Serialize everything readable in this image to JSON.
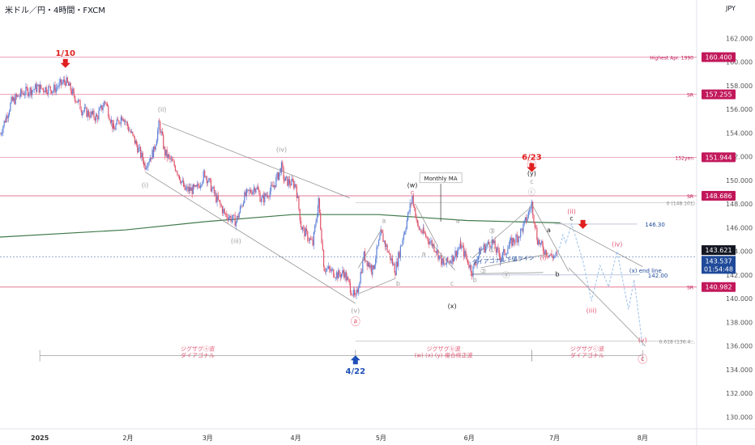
{
  "header": {
    "symbol_title": "米ドル／円・4時間・FXCM",
    "currency": "JPY"
  },
  "colors": {
    "up": "#5b7fd6",
    "down": "#e0526a",
    "sr": "#e06b8a",
    "sr_badge": "#c2185b",
    "wave": "#9e9e9e",
    "wave_red": "#e25c78",
    "arrow_red": "#e02020",
    "arrow_blue": "#1f4fb8",
    "ma": "#3f7a4b",
    "current": "#1f4a99"
  },
  "chart_data": {
    "type": "candlestick",
    "y_axis": {
      "min": 129,
      "max": 164,
      "ticks": [
        "162.000",
        "160.000",
        "158.000",
        "156.000",
        "154.000",
        "152.000",
        "150.000",
        "148.000",
        "146.000",
        "144.000",
        "142.000",
        "140.000",
        "138.000",
        "136.000",
        "134.000",
        "132.000",
        "130.000"
      ]
    },
    "x_axis": {
      "start": "2024-12-18",
      "end": "2025-08-20",
      "ticks": [
        {
          "date": "2025-01-01",
          "label": "2025"
        },
        {
          "date": "2025-02-01",
          "label": "2月"
        },
        {
          "date": "2025-03-01",
          "label": "3月"
        },
        {
          "date": "2025-04-01",
          "label": "4月"
        },
        {
          "date": "2025-05-01",
          "label": "5月"
        },
        {
          "date": "2025-06-01",
          "label": "6月"
        },
        {
          "date": "2025-07-01",
          "label": "7月"
        },
        {
          "date": "2025-08-01",
          "label": "8月"
        }
      ]
    },
    "price_path": [
      [
        "2024-12-18",
        153.9
      ],
      [
        "2024-12-22",
        156.6
      ],
      [
        "2024-12-26",
        157.4
      ],
      [
        "2024-12-31",
        157.8
      ],
      [
        "2025-01-06",
        157.7
      ],
      [
        "2025-01-10",
        158.4
      ],
      [
        "2025-01-13",
        157.2
      ],
      [
        "2025-01-16",
        155.9
      ],
      [
        "2025-01-21",
        155.3
      ],
      [
        "2025-01-24",
        156.7
      ],
      [
        "2025-01-27",
        154.3
      ],
      [
        "2025-01-30",
        155.5
      ],
      [
        "2025-02-04",
        153.0
      ],
      [
        "2025-02-07",
        151.3
      ],
      [
        "2025-02-10",
        152.4
      ],
      [
        "2025-02-12",
        154.8
      ],
      [
        "2025-02-14",
        152.3
      ],
      [
        "2025-02-18",
        151.0
      ],
      [
        "2025-02-21",
        149.2
      ],
      [
        "2025-02-25",
        149.2
      ],
      [
        "2025-02-28",
        150.6
      ],
      [
        "2025-03-04",
        148.5
      ],
      [
        "2025-03-07",
        147.2
      ],
      [
        "2025-03-11",
        146.5
      ],
      [
        "2025-03-14",
        148.6
      ],
      [
        "2025-03-18",
        149.5
      ],
      [
        "2025-03-20",
        148.3
      ],
      [
        "2025-03-24",
        149.4
      ],
      [
        "2025-03-27",
        151.1
      ],
      [
        "2025-03-28",
        150.0
      ],
      [
        "2025-04-01",
        149.6
      ],
      [
        "2025-04-03",
        146.0
      ],
      [
        "2025-04-07",
        144.6
      ],
      [
        "2025-04-09",
        148.2
      ],
      [
        "2025-04-11",
        142.6
      ],
      [
        "2025-04-16",
        142.0
      ],
      [
        "2025-04-18",
        142.2
      ],
      [
        "2025-04-22",
        139.9
      ],
      [
        "2025-04-25",
        143.6
      ],
      [
        "2025-04-28",
        142.4
      ],
      [
        "2025-05-01",
        145.5
      ],
      [
        "2025-05-06",
        142.4
      ],
      [
        "2025-05-09",
        145.5
      ],
      [
        "2025-05-12",
        148.6
      ],
      [
        "2025-05-14",
        146.0
      ],
      [
        "2025-05-16",
        145.5
      ],
      [
        "2025-05-20",
        144.3
      ],
      [
        "2025-05-23",
        142.8
      ],
      [
        "2025-05-26",
        143.4
      ],
      [
        "2025-05-29",
        144.5
      ],
      [
        "2025-06-02",
        142.3
      ],
      [
        "2025-06-05",
        144.1
      ],
      [
        "2025-06-09",
        144.8
      ],
      [
        "2025-06-12",
        143.4
      ],
      [
        "2025-06-16",
        144.8
      ],
      [
        "2025-06-18",
        145.2
      ],
      [
        "2025-06-20",
        146.0
      ],
      [
        "2025-06-23",
        148.0
      ],
      [
        "2025-06-25",
        145.0
      ],
      [
        "2025-06-27",
        144.2
      ],
      [
        "2025-06-30",
        143.6
      ],
      [
        "2025-07-02",
        143.6
      ]
    ],
    "moving_average": {
      "label": "Monthly MA",
      "points": [
        [
          "2024-12-18",
          145.2
        ],
        [
          "2025-01-31",
          145.8
        ],
        [
          "2025-02-28",
          146.5
        ],
        [
          "2025-03-31",
          147.1
        ],
        [
          "2025-04-30",
          147.1
        ],
        [
          "2025-05-31",
          146.6
        ],
        [
          "2025-07-03",
          146.4
        ]
      ]
    },
    "horizontal_levels": [
      {
        "price": 160.4,
        "label": "Highest Apr. 1990",
        "badge": "160.400",
        "solid": false
      },
      {
        "price": 157.255,
        "label": "SR",
        "badge": "157.255",
        "solid": false
      },
      {
        "price": 151.944,
        "label": "152yen",
        "badge": "151.944",
        "solid": false
      },
      {
        "price": 148.686,
        "label": "SR",
        "badge": "148.686",
        "solid": true
      },
      {
        "price": 140.982,
        "label": "SR",
        "badge": "140.982",
        "solid": true
      }
    ],
    "price_badges": [
      {
        "price": 143.621,
        "label": "143.621",
        "style": "dark"
      },
      {
        "price": 143.537,
        "label": "143.537",
        "label2": "01:54:48",
        "style": "blue"
      }
    ],
    "current_price_line": 143.537,
    "fib_levels": [
      {
        "price": 148.101,
        "label": "0 (148.101)",
        "from": "2025-04-22"
      },
      {
        "price": 136.4,
        "label": "0.618 (136.4...",
        "from": "2025-04-22"
      }
    ],
    "extra_lines": [
      {
        "label": "146.30",
        "price": 146.3,
        "from": "2025-07-01",
        "to": "2025-07-30"
      },
      {
        "label": "142.00",
        "price": 142.0,
        "from": "2025-06-01",
        "to": "2025-07-31"
      }
    ],
    "trendlines": [
      {
        "from": [
          "2025-02-13",
          154.8
        ],
        "to": [
          "2025-04-20",
          148.5
        ]
      },
      {
        "from": [
          "2025-02-07",
          150.7
        ],
        "to": [
          "2025-04-22",
          139.6
        ]
      },
      {
        "from": [
          "2025-04-23",
          142.6
        ],
        "to": [
          "2025-05-01",
          145.8
        ]
      },
      {
        "from": [
          "2025-04-23",
          140.4
        ],
        "to": [
          "2025-05-06",
          141.7
        ]
      },
      {
        "from": [
          "2025-05-13",
          148.0
        ],
        "to": [
          "2025-05-21",
          144.4
        ]
      },
      {
        "from": [
          "2025-05-19",
          144.6
        ],
        "to": [
          "2025-05-27",
          142.4
        ]
      },
      {
        "from": [
          "2025-06-02",
          143.4
        ],
        "to": [
          "2025-06-23",
          147.8
        ]
      },
      {
        "from": [
          "2025-06-05",
          142.6
        ],
        "to": [
          "2025-06-29",
          143.8
        ]
      },
      {
        "from": [
          "2025-06-02",
          142.1
        ],
        "to": [
          "2025-06-27",
          142.2
        ]
      },
      {
        "from": [
          "2025-06-23",
          148.0
        ],
        "to": [
          "2025-07-06",
          142.3
        ]
      },
      {
        "from": [
          "2025-07-06",
          142.6
        ],
        "to": [
          "2025-08-02",
          136.0
        ]
      },
      {
        "from": [
          "2025-07-03",
          146.4
        ],
        "to": [
          "2025-08-01",
          142.7
        ]
      }
    ],
    "projection": [
      [
        "2025-07-02",
        143.6
      ],
      [
        "2025-07-04",
        145.4
      ],
      [
        "2025-07-05",
        144.7
      ],
      [
        "2025-07-07",
        146.3
      ],
      [
        "2025-07-11",
        143.2
      ],
      [
        "2025-07-14",
        139.8
      ],
      [
        "2025-07-17",
        142.8
      ],
      [
        "2025-07-20",
        141.0
      ],
      [
        "2025-07-23",
        144.0
      ],
      [
        "2025-07-27",
        139.1
      ],
      [
        "2025-07-29",
        141.6
      ],
      [
        "2025-08-01",
        136.0
      ]
    ],
    "wave_labels": [
      {
        "t": "(ii)",
        "d": "2025-02-13",
        "p": 155.8,
        "c": "wave"
      },
      {
        "t": "(i)",
        "d": "2025-02-07",
        "p": 149.4,
        "c": "wave"
      },
      {
        "t": "(iii)",
        "d": "2025-03-11",
        "p": 144.7,
        "c": "wave"
      },
      {
        "t": "(iv)",
        "d": "2025-03-27",
        "p": 152.4,
        "c": "wave"
      },
      {
        "t": "(v)",
        "d": "2025-04-22",
        "p": 138.8,
        "c": "wave"
      },
      {
        "t": "(w)",
        "d": "2025-05-12",
        "p": 149.4,
        "c": "dark"
      },
      {
        "t": "c",
        "d": "2025-05-12",
        "p": 148.8,
        "c": "wave_red"
      },
      {
        "t": "a",
        "d": "2025-05-02",
        "p": 146.4,
        "c": "wave"
      },
      {
        "t": "b",
        "d": "2025-05-07",
        "p": 141.1,
        "c": "wave"
      },
      {
        "t": "a",
        "d": "2025-05-16",
        "p": 143.6,
        "c": "wave"
      },
      {
        "t": "a",
        "d": "2025-05-28",
        "p": 146.4,
        "c": "wave"
      },
      {
        "t": "c",
        "d": "2025-05-26",
        "p": 141.1,
        "c": "wave"
      },
      {
        "t": "b",
        "d": "2025-06-03",
        "p": 141.4,
        "c": "wave"
      },
      {
        "t": "(x)",
        "d": "2025-05-26",
        "p": 139.2,
        "c": "dark"
      },
      {
        "t": "(y)",
        "d": "2025-06-23",
        "p": 150.4,
        "c": "dark"
      },
      {
        "t": "c",
        "d": "2025-06-23",
        "p": 149.7,
        "c": "wave"
      },
      {
        "t": "a",
        "d": "2025-06-29",
        "p": 145.6,
        "c": "dark"
      },
      {
        "t": "b",
        "d": "2025-07-02",
        "p": 141.9,
        "c": "dark"
      },
      {
        "t": "c",
        "d": "2025-07-07",
        "p": 146.6,
        "c": "dark"
      },
      {
        "t": "(ii)",
        "d": "2025-07-07",
        "p": 147.2,
        "c": "wave_red"
      },
      {
        "t": "(iv)",
        "d": "2025-07-23",
        "p": 144.4,
        "c": "wave_red"
      },
      {
        "t": "(iii)",
        "d": "2025-07-14",
        "p": 138.8,
        "c": "wave_red"
      },
      {
        "t": "(v)",
        "d": "2025-08-01",
        "p": 136.3,
        "c": "wave_red"
      },
      {
        "t": "(i)",
        "d": "2025-06-27",
        "p": 143.3,
        "c": "wave_red"
      }
    ],
    "circled_labels": [
      {
        "t": "ⓐ",
        "d": "2025-04-22",
        "p": 137.8,
        "c": "wave_red"
      },
      {
        "t": "ⓑ",
        "d": "2025-06-23",
        "p": 151.0,
        "c": "wave_red"
      },
      {
        "t": "ⓒ",
        "d": "2025-08-01",
        "p": 134.6,
        "c": "wave_red"
      },
      {
        "t": "ⓐ",
        "d": "2025-06-14",
        "p": 141.8,
        "c": "wave"
      },
      {
        "t": "①",
        "d": "2025-06-09",
        "p": 143.9,
        "c": "wave"
      },
      {
        "t": "②",
        "d": "2025-06-06",
        "p": 142.1,
        "c": "wave"
      },
      {
        "t": "③",
        "d": "2025-06-09",
        "p": 145.5,
        "c": "wave"
      },
      {
        "t": "ⓒ",
        "d": "2025-06-23",
        "p": 148.8,
        "c": "wave"
      }
    ],
    "arrows": [
      {
        "dir": "down",
        "d": "2025-01-10",
        "p": 159.7,
        "label": "1/10",
        "c": "arrow_red"
      },
      {
        "dir": "down",
        "d": "2025-06-23",
        "p": 150.9,
        "label": "6/23",
        "c": "arrow_red"
      },
      {
        "dir": "up",
        "d": "2025-04-22",
        "p": 135.0,
        "label": "4/22",
        "c": "arrow_blue"
      },
      {
        "dir": "down",
        "d": "2025-07-11",
        "p": 146.1,
        "label": "",
        "c": "arrow_red"
      }
    ],
    "annotations": [
      {
        "t": "ダイアゴナル下値ライン",
        "d": "2025-06-13",
        "p": 143.1,
        "c": "current",
        "rot": -4
      },
      {
        "t": "(x) end line",
        "d": "2025-08-02",
        "p": 142.2,
        "c": "current",
        "rot": 0
      },
      {
        "t": "Monthly MA",
        "d": "2025-05-22",
        "p": 150.0,
        "c": "dark",
        "box": true
      }
    ],
    "ma_pointer": {
      "from": [
        "2025-05-22",
        149.7
      ],
      "to": [
        "2025-05-22",
        146.5
      ]
    },
    "range_brackets": [
      {
        "from": "2025-01-01",
        "to": "2025-04-22",
        "p": 136.0,
        "l1": "ジグザグⓐ波",
        "l2": "ダイアゴナル"
      },
      {
        "from": "2025-04-22",
        "to": "2025-06-23",
        "p": 136.0,
        "l1": "ジグザグⓑ波",
        "l2": "(w) (x) (y) 複合修正波"
      },
      {
        "from": "2025-06-23",
        "to": "2025-08-01",
        "p": 136.0,
        "l1": "ジグザグⓒ波",
        "l2": "ダイアゴナル"
      }
    ]
  }
}
